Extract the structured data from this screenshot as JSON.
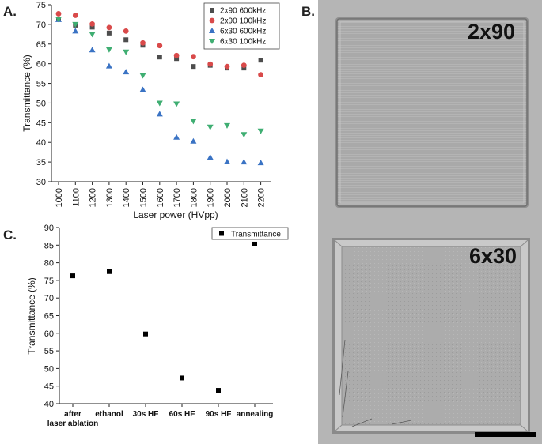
{
  "panel_labels": {
    "a": "A.",
    "b": "B.",
    "c": "C."
  },
  "image_labels": {
    "top": "2x90",
    "bottom": "6x30"
  },
  "colors": {
    "s2x90_600": "#4d4d4d",
    "s2x90_100": "#d94a4a",
    "s6x30_600": "#3a73c4",
    "s6x30_100": "#3fae72",
    "transmittance": "#000000",
    "scale_bar": "#000000"
  },
  "chart_data": [
    {
      "type": "scatter",
      "title": "",
      "xlabel": "Laser power (HVpp)",
      "ylabel": "Transmittance (%)",
      "x": [
        1000,
        1100,
        1200,
        1300,
        1400,
        1500,
        1600,
        1700,
        1800,
        1900,
        2000,
        2100,
        2200
      ],
      "ylim": [
        30,
        75
      ],
      "yticks": [
        30,
        35,
        40,
        45,
        50,
        55,
        60,
        65,
        70,
        75
      ],
      "legend_position": "top-right",
      "series": [
        {
          "name": "2x90 600kHz",
          "marker": "square",
          "values": [
            71.3,
            69.8,
            69.3,
            67.8,
            66.1,
            64.7,
            61.7,
            61.3,
            59.3,
            59.6,
            58.9,
            58.9,
            60.9
          ]
        },
        {
          "name": "2x90 100kHz",
          "marker": "circle",
          "values": [
            72.7,
            72.3,
            70.1,
            69.2,
            68.3,
            65.3,
            64.6,
            62.1,
            61.8,
            59.9,
            59.3,
            59.6,
            57.2
          ]
        },
        {
          "name": "6x30 600kHz",
          "marker": "triangle-up",
          "values": [
            71.2,
            68.3,
            63.5,
            59.4,
            57.9,
            53.4,
            47.2,
            41.3,
            40.3,
            36.2,
            35.1,
            35.0,
            34.8
          ]
        },
        {
          "name": "6x30 100kHz",
          "marker": "triangle-down",
          "values": [
            71.3,
            70.0,
            67.5,
            63.6,
            63.0,
            57.0,
            50.0,
            49.8,
            45.4,
            43.9,
            44.3,
            42.0,
            42.9
          ]
        }
      ]
    },
    {
      "type": "scatter",
      "title": "",
      "xlabel": "",
      "ylabel": "Transmittance (%)",
      "categories": [
        [
          "after",
          "laser ablation"
        ],
        [
          "ethanol"
        ],
        [
          "30s HF"
        ],
        [
          "60s HF"
        ],
        [
          "90s HF"
        ],
        [
          "annealing"
        ]
      ],
      "ylim": [
        40,
        90
      ],
      "yticks": [
        40,
        45,
        50,
        55,
        60,
        65,
        70,
        75,
        80,
        85,
        90
      ],
      "legend_position": "top-right",
      "series": [
        {
          "name": "Transmittance",
          "marker": "square",
          "values": [
            76.3,
            77.5,
            59.8,
            47.3,
            43.8,
            85.3
          ]
        }
      ]
    }
  ]
}
